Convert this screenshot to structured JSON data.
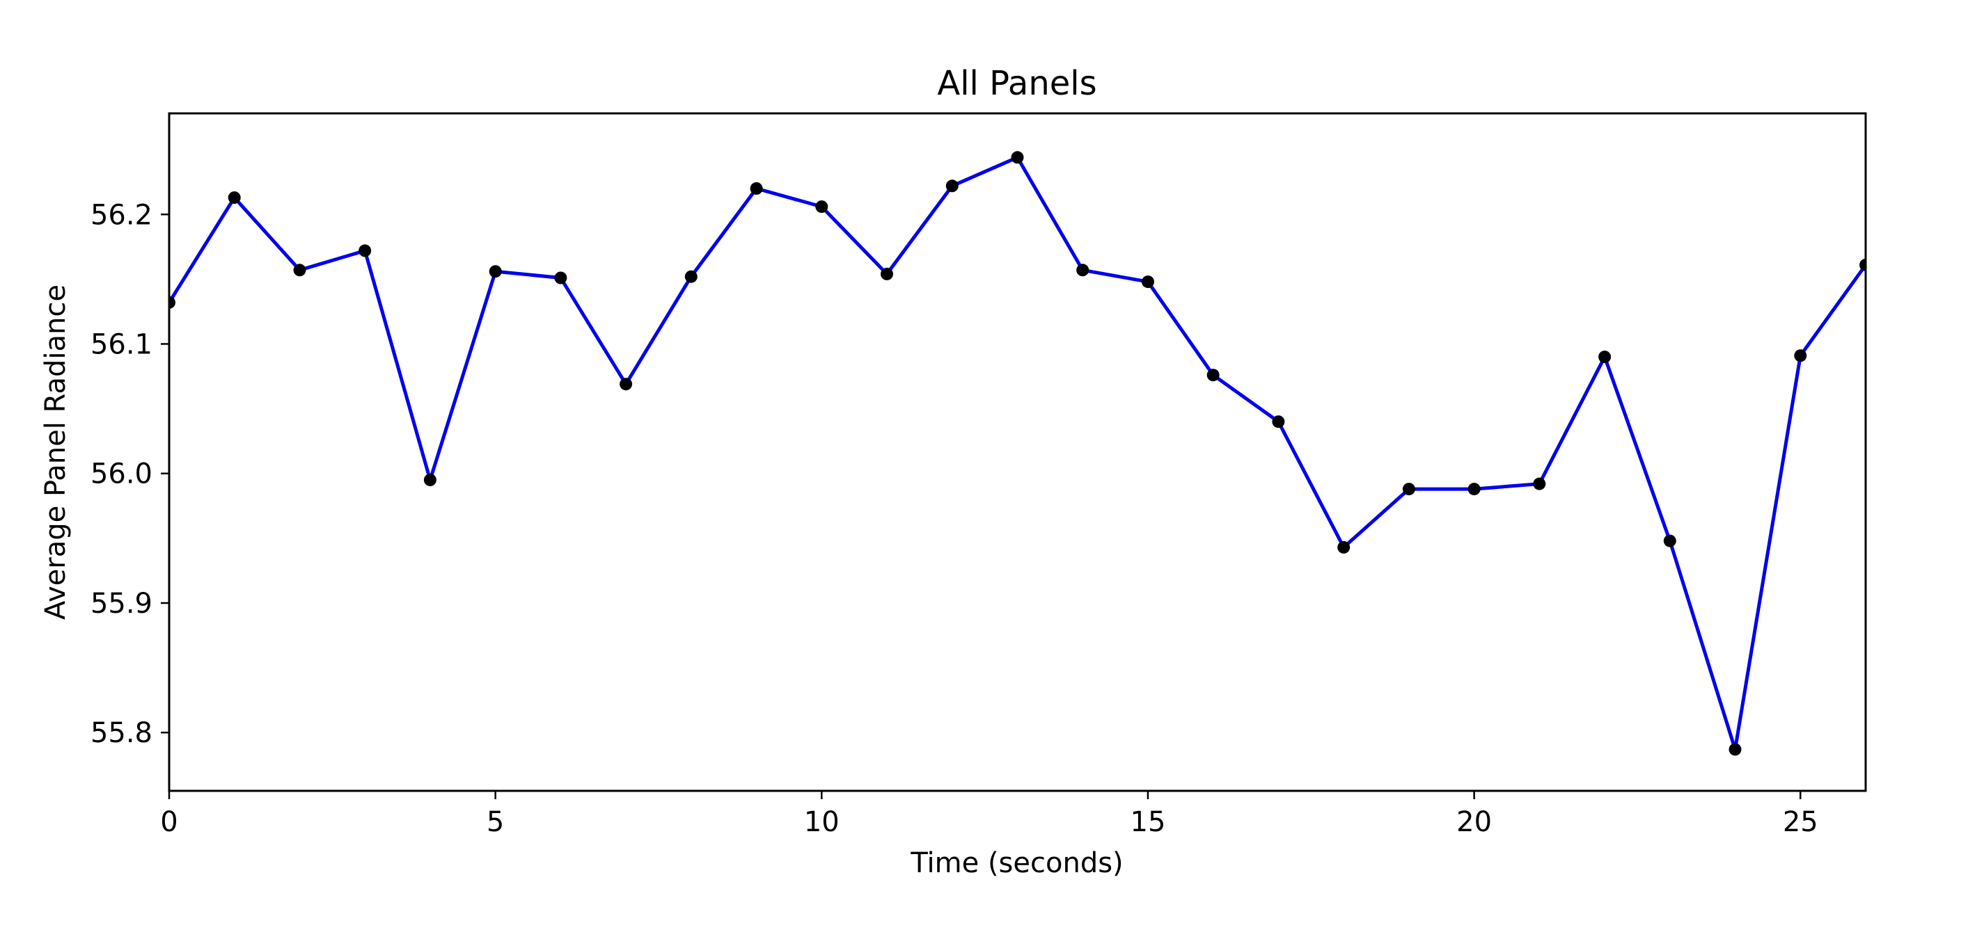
{
  "chart_data": {
    "type": "line",
    "title": "All Panels",
    "xlabel": "Time (seconds)",
    "ylabel": "Average Panel Radiance",
    "xlim": [
      0,
      26
    ],
    "ylim": [
      55.755,
      56.278
    ],
    "x_ticks": [
      0,
      5,
      10,
      15,
      20,
      25
    ],
    "y_ticks": [
      55.8,
      55.9,
      56.0,
      56.1,
      56.2
    ],
    "y_tick_labels": [
      "55.8",
      "55.9",
      "56.0",
      "56.1",
      "56.2"
    ],
    "x_tick_labels": [
      "0",
      "5",
      "10",
      "15",
      "20",
      "25"
    ],
    "grid": false,
    "series": [
      {
        "color": "#0000ee",
        "marker_color": "#000000",
        "x": [
          0,
          1,
          2,
          3,
          4,
          5,
          6,
          7,
          8,
          9,
          10,
          11,
          12,
          13,
          14,
          15,
          16,
          17,
          18,
          19,
          20,
          21,
          22,
          23,
          24,
          25,
          26
        ],
        "y": [
          56.132,
          56.213,
          56.157,
          56.172,
          55.995,
          56.156,
          56.151,
          56.069,
          56.152,
          56.22,
          56.206,
          56.154,
          56.222,
          56.244,
          56.157,
          56.148,
          56.076,
          56.04,
          55.943,
          55.988,
          55.988,
          55.992,
          56.09,
          55.948,
          55.787,
          56.091,
          56.161
        ]
      }
    ]
  }
}
